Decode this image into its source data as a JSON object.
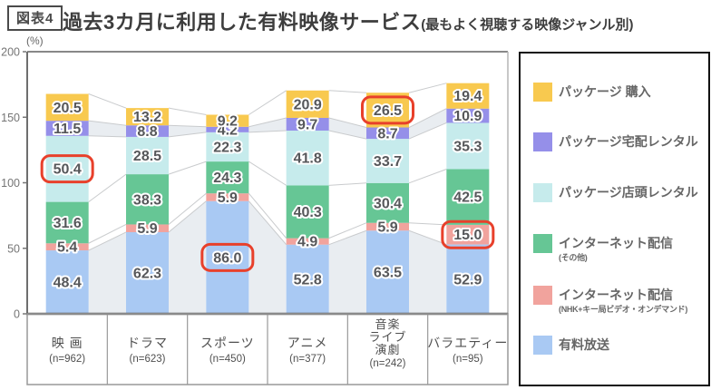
{
  "figure": {
    "tag": "図表4",
    "title": "過去3カ月に利用した有料映像サービス",
    "subtitle": "(最もよく視聴する映像ジャンル別)"
  },
  "chart_data": {
    "type": "bar",
    "stacked": true,
    "unit_label": "(%)",
    "ylim": [
      0,
      200
    ],
    "yticks": [
      0,
      50,
      100,
      150,
      200
    ],
    "grid": false,
    "legend_position": "right",
    "categories": [
      {
        "lines": [
          "映 画"
        ],
        "n": "(n=962)"
      },
      {
        "lines": [
          "ドラマ"
        ],
        "n": "(n=623)"
      },
      {
        "lines": [
          "スポーツ"
        ],
        "n": "(n=450)"
      },
      {
        "lines": [
          "アニメ"
        ],
        "n": "(n=377)"
      },
      {
        "lines": [
          "音楽",
          "ライブ",
          "演劇"
        ],
        "n": "(n=242)"
      },
      {
        "lines": [
          "バラエティー"
        ],
        "n": "(n=95)"
      }
    ],
    "series": [
      {
        "name": "有料放送",
        "color": "#A9C9F3",
        "values": [
          48.4,
          62.3,
          86.0,
          52.8,
          63.5,
          52.9
        ]
      },
      {
        "name": "インターネット配信(NHK+キー局ビデオ・オンデマンド)",
        "color": "#F1A39D",
        "values": [
          5.4,
          5.9,
          5.9,
          4.9,
          5.9,
          15.0
        ]
      },
      {
        "name": "インターネット配信(その他)",
        "color": "#66C695",
        "values": [
          31.6,
          38.3,
          24.3,
          40.3,
          30.4,
          42.5
        ]
      },
      {
        "name": "パッケージ店頭レンタル",
        "color": "#C6EBEC",
        "values": [
          50.4,
          28.5,
          22.3,
          41.8,
          33.7,
          35.3
        ]
      },
      {
        "name": "パッケージ宅配レンタル",
        "color": "#958FE9",
        "values": [
          11.5,
          8.8,
          4.2,
          9.7,
          8.7,
          10.9
        ]
      },
      {
        "name": "パッケージ購入",
        "color": "#F8C94F",
        "values": [
          20.5,
          13.2,
          9.2,
          20.9,
          26.5,
          19.4
        ]
      }
    ],
    "highlights": [
      {
        "category": 0,
        "series": 3,
        "value": 50.4
      },
      {
        "category": 2,
        "series": 0,
        "value": 86.0
      },
      {
        "category": 4,
        "series": 5,
        "value": 26.5
      },
      {
        "category": 5,
        "series": 1,
        "value": 15.0
      }
    ],
    "style": {
      "ribbon_fill": "#E9EDF1",
      "connector_line": "#C9CBCD",
      "highlight_stroke": "#E8402B",
      "axis_dark": "#5a5a5a",
      "axis_mid": "#888888",
      "axis_light": "#b5b5b5",
      "band_border": "#999999"
    }
  },
  "legend": {
    "items": [
      {
        "label": "パッケージ 購入",
        "sublabel": "",
        "color": "#F8C94F"
      },
      {
        "label": "パッケージ宅配レンタル",
        "sublabel": "",
        "color": "#958FE9"
      },
      {
        "label": "パッケージ店頭レンタル",
        "sublabel": "",
        "color": "#C6EBEC"
      },
      {
        "label": "インターネット配信",
        "sublabel": "(その他)",
        "color": "#66C695"
      },
      {
        "label": "インターネット配信",
        "sublabel": "(NHK+キー局ビデオ・オンデマンド)",
        "color": "#F1A39D"
      },
      {
        "label": "有料放送",
        "sublabel": "",
        "color": "#A9C9F3"
      }
    ]
  }
}
